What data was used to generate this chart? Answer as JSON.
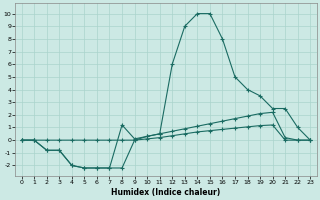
{
  "xlabel": "Humidex (Indice chaleur)",
  "xlim": [
    -0.5,
    23.5
  ],
  "ylim": [
    -2.8,
    10.8
  ],
  "yticks": [
    -2,
    -1,
    0,
    1,
    2,
    3,
    4,
    5,
    6,
    7,
    8,
    9,
    10
  ],
  "xticks": [
    0,
    1,
    2,
    3,
    4,
    5,
    6,
    7,
    8,
    9,
    10,
    11,
    12,
    13,
    14,
    15,
    16,
    17,
    18,
    19,
    20,
    21,
    22,
    23
  ],
  "bg_color": "#cce9e4",
  "grid_color": "#aad4cc",
  "line_color": "#1a6b62",
  "line_peak_x": [
    0,
    1,
    2,
    3,
    4,
    5,
    6,
    7,
    8,
    9,
    10,
    11,
    12,
    13,
    14,
    15,
    16,
    17,
    18,
    19,
    20,
    21,
    22,
    23
  ],
  "line_peak_y": [
    0,
    0,
    -0.8,
    -0.8,
    -2.0,
    -2.2,
    -2.2,
    -2.2,
    1.2,
    0.1,
    0.3,
    0.5,
    6.0,
    9.0,
    10.0,
    10.0,
    8.0,
    5.0,
    4.0,
    3.5,
    2.5,
    2.5,
    1.0,
    0.0
  ],
  "line_mid_x": [
    0,
    1,
    2,
    3,
    4,
    5,
    6,
    7,
    8,
    9,
    10,
    11,
    12,
    13,
    14,
    15,
    16,
    17,
    18,
    19,
    20,
    21,
    22,
    23
  ],
  "line_mid_y": [
    0,
    0,
    -0.8,
    -0.8,
    -2.0,
    -2.2,
    -2.2,
    -2.2,
    -2.2,
    0.0,
    0.3,
    0.5,
    0.7,
    0.9,
    1.1,
    1.3,
    1.5,
    1.7,
    1.9,
    2.1,
    2.2,
    0.2,
    0.0,
    0.0
  ],
  "line_flat_x": [
    0,
    1,
    2,
    3,
    4,
    5,
    6,
    7,
    8,
    9,
    10,
    11,
    12,
    13,
    14,
    15,
    16,
    17,
    18,
    19,
    20,
    21,
    22,
    23
  ],
  "line_flat_y": [
    0,
    0,
    0,
    0,
    0,
    0,
    0,
    0,
    0,
    0,
    0.1,
    0.2,
    0.35,
    0.5,
    0.65,
    0.75,
    0.85,
    0.95,
    1.05,
    1.15,
    1.2,
    0.0,
    0.0,
    0.0
  ]
}
